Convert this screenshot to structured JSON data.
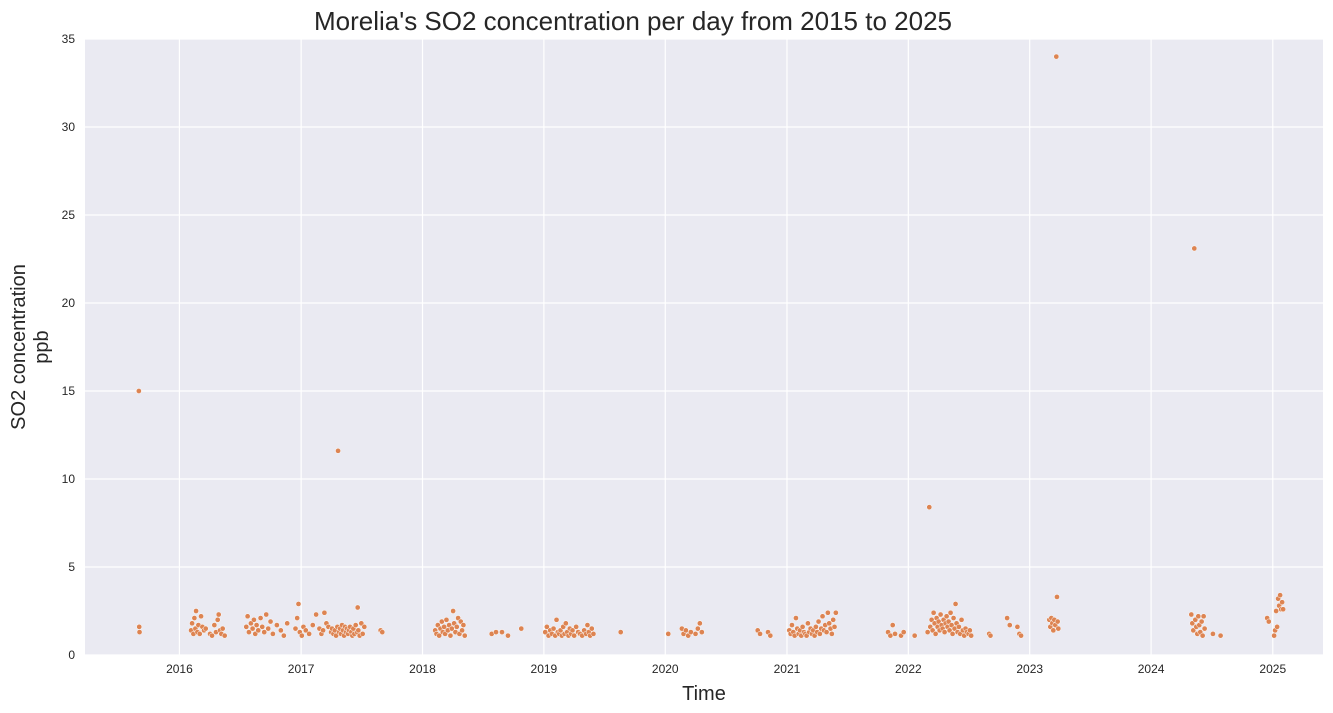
{
  "chart_data": {
    "type": "scatter",
    "title": "Morelia's SO2 concentration per day from 2015 to 2025",
    "xlabel": "Time",
    "ylabel_lines": [
      "SO2 concentration",
      "ppb"
    ],
    "xlim": [
      "2015-03-23",
      "2025-06-01"
    ],
    "ylim": [
      0,
      35
    ],
    "x_ticks": [
      "2016",
      "2017",
      "2018",
      "2019",
      "2020",
      "2021",
      "2022",
      "2023",
      "2024",
      "2025"
    ],
    "x_tick_dates": [
      "2016-01-01",
      "2017-01-01",
      "2018-01-01",
      "2019-01-01",
      "2020-01-01",
      "2021-01-01",
      "2022-01-01",
      "2023-01-01",
      "2024-01-01",
      "2025-01-01"
    ],
    "y_ticks": [
      "0",
      "5",
      "10",
      "15",
      "20",
      "25",
      "30",
      "35"
    ],
    "grid": true,
    "background_color": "#eaeaf2",
    "point_color": "#dd8452",
    "points": [
      {
        "x": "2015-09-01",
        "y": 15.0
      },
      {
        "x": "2015-09-02",
        "y": 1.6
      },
      {
        "x": "2015-09-03",
        "y": 1.3
      },
      {
        "x": "2016-02-05",
        "y": 1.4
      },
      {
        "x": "2016-02-08",
        "y": 1.8
      },
      {
        "x": "2016-02-12",
        "y": 1.2
      },
      {
        "x": "2016-02-15",
        "y": 2.1
      },
      {
        "x": "2016-02-18",
        "y": 1.5
      },
      {
        "x": "2016-02-20",
        "y": 2.5
      },
      {
        "x": "2016-02-24",
        "y": 1.3
      },
      {
        "x": "2016-02-27",
        "y": 1.7
      },
      {
        "x": "2016-03-02",
        "y": 1.2
      },
      {
        "x": "2016-03-06",
        "y": 2.2
      },
      {
        "x": "2016-03-10",
        "y": 1.6
      },
      {
        "x": "2016-03-15",
        "y": 1.4
      },
      {
        "x": "2016-03-20",
        "y": 1.5
      },
      {
        "x": "2016-04-02",
        "y": 1.2
      },
      {
        "x": "2016-04-08",
        "y": 1.1
      },
      {
        "x": "2016-04-15",
        "y": 1.7
      },
      {
        "x": "2016-04-20",
        "y": 1.3
      },
      {
        "x": "2016-04-25",
        "y": 2.0
      },
      {
        "x": "2016-04-28",
        "y": 2.3
      },
      {
        "x": "2016-05-02",
        "y": 1.4
      },
      {
        "x": "2016-05-06",
        "y": 1.2
      },
      {
        "x": "2016-05-10",
        "y": 1.5
      },
      {
        "x": "2016-05-16",
        "y": 1.1
      },
      {
        "x": "2016-07-20",
        "y": 1.6
      },
      {
        "x": "2016-07-24",
        "y": 2.2
      },
      {
        "x": "2016-07-28",
        "y": 1.3
      },
      {
        "x": "2016-08-03",
        "y": 1.8
      },
      {
        "x": "2016-08-08",
        "y": 1.5
      },
      {
        "x": "2016-08-12",
        "y": 2.0
      },
      {
        "x": "2016-08-16",
        "y": 1.2
      },
      {
        "x": "2016-08-20",
        "y": 1.7
      },
      {
        "x": "2016-08-25",
        "y": 1.4
      },
      {
        "x": "2016-09-01",
        "y": 2.1
      },
      {
        "x": "2016-09-06",
        "y": 1.6
      },
      {
        "x": "2016-09-12",
        "y": 1.3
      },
      {
        "x": "2016-09-18",
        "y": 2.3
      },
      {
        "x": "2016-09-24",
        "y": 1.5
      },
      {
        "x": "2016-10-01",
        "y": 1.9
      },
      {
        "x": "2016-10-08",
        "y": 1.2
      },
      {
        "x": "2016-10-20",
        "y": 1.7
      },
      {
        "x": "2016-11-01",
        "y": 1.4
      },
      {
        "x": "2016-11-10",
        "y": 1.1
      },
      {
        "x": "2016-11-20",
        "y": 1.8
      },
      {
        "x": "2016-12-15",
        "y": 1.5
      },
      {
        "x": "2016-12-20",
        "y": 2.1
      },
      {
        "x": "2016-12-24",
        "y": 2.9
      },
      {
        "x": "2016-12-28",
        "y": 1.3
      },
      {
        "x": "2017-01-03",
        "y": 1.1
      },
      {
        "x": "2017-01-08",
        "y": 1.6
      },
      {
        "x": "2017-01-15",
        "y": 1.4
      },
      {
        "x": "2017-01-25",
        "y": 1.2
      },
      {
        "x": "2017-02-05",
        "y": 1.7
      },
      {
        "x": "2017-02-15",
        "y": 2.3
      },
      {
        "x": "2017-02-25",
        "y": 1.5
      },
      {
        "x": "2017-03-03",
        "y": 1.2
      },
      {
        "x": "2017-03-08",
        "y": 1.4
      },
      {
        "x": "2017-03-12",
        "y": 2.4
      },
      {
        "x": "2017-03-18",
        "y": 1.8
      },
      {
        "x": "2017-03-24",
        "y": 1.6
      },
      {
        "x": "2017-04-01",
        "y": 1.3
      },
      {
        "x": "2017-04-04",
        "y": 1.5
      },
      {
        "x": "2017-04-08",
        "y": 1.2
      },
      {
        "x": "2017-04-12",
        "y": 1.4
      },
      {
        "x": "2017-04-16",
        "y": 1.1
      },
      {
        "x": "2017-04-20",
        "y": 1.6
      },
      {
        "x": "2017-04-22",
        "y": 11.6
      },
      {
        "x": "2017-04-25",
        "y": 1.3
      },
      {
        "x": "2017-04-28",
        "y": 1.5
      },
      {
        "x": "2017-05-01",
        "y": 1.2
      },
      {
        "x": "2017-05-04",
        "y": 1.7
      },
      {
        "x": "2017-05-07",
        "y": 1.4
      },
      {
        "x": "2017-05-10",
        "y": 1.1
      },
      {
        "x": "2017-05-13",
        "y": 1.6
      },
      {
        "x": "2017-05-16",
        "y": 1.3
      },
      {
        "x": "2017-05-19",
        "y": 1.5
      },
      {
        "x": "2017-05-22",
        "y": 1.2
      },
      {
        "x": "2017-05-25",
        "y": 1.4
      },
      {
        "x": "2017-05-28",
        "y": 1.6
      },
      {
        "x": "2017-06-01",
        "y": 1.3
      },
      {
        "x": "2017-06-04",
        "y": 1.1
      },
      {
        "x": "2017-06-07",
        "y": 1.5
      },
      {
        "x": "2017-06-10",
        "y": 1.2
      },
      {
        "x": "2017-06-14",
        "y": 1.7
      },
      {
        "x": "2017-06-18",
        "y": 1.3
      },
      {
        "x": "2017-06-20",
        "y": 2.7
      },
      {
        "x": "2017-06-22",
        "y": 1.4
      },
      {
        "x": "2017-06-26",
        "y": 1.1
      },
      {
        "x": "2017-07-01",
        "y": 1.8
      },
      {
        "x": "2017-07-05",
        "y": 1.2
      },
      {
        "x": "2017-07-10",
        "y": 1.6
      },
      {
        "x": "2017-08-28",
        "y": 1.4
      },
      {
        "x": "2017-09-02",
        "y": 1.3
      },
      {
        "x": "2018-02-08",
        "y": 1.4
      },
      {
        "x": "2018-02-12",
        "y": 1.2
      },
      {
        "x": "2018-02-16",
        "y": 1.7
      },
      {
        "x": "2018-02-20",
        "y": 1.1
      },
      {
        "x": "2018-02-24",
        "y": 1.5
      },
      {
        "x": "2018-02-28",
        "y": 1.9
      },
      {
        "x": "2018-03-03",
        "y": 1.3
      },
      {
        "x": "2018-03-07",
        "y": 1.6
      },
      {
        "x": "2018-03-10",
        "y": 1.2
      },
      {
        "x": "2018-03-14",
        "y": 2.0
      },
      {
        "x": "2018-03-18",
        "y": 1.4
      },
      {
        "x": "2018-03-22",
        "y": 1.7
      },
      {
        "x": "2018-03-26",
        "y": 1.1
      },
      {
        "x": "2018-03-30",
        "y": 1.5
      },
      {
        "x": "2018-04-03",
        "y": 2.5
      },
      {
        "x": "2018-04-06",
        "y": 1.8
      },
      {
        "x": "2018-04-10",
        "y": 1.3
      },
      {
        "x": "2018-04-14",
        "y": 1.6
      },
      {
        "x": "2018-04-18",
        "y": 2.1
      },
      {
        "x": "2018-04-22",
        "y": 1.2
      },
      {
        "x": "2018-04-26",
        "y": 1.9
      },
      {
        "x": "2018-04-30",
        "y": 1.4
      },
      {
        "x": "2018-05-04",
        "y": 1.7
      },
      {
        "x": "2018-05-08",
        "y": 1.1
      },
      {
        "x": "2018-07-28",
        "y": 1.2
      },
      {
        "x": "2018-08-10",
        "y": 1.3
      },
      {
        "x": "2018-08-28",
        "y": 1.3
      },
      {
        "x": "2018-09-15",
        "y": 1.1
      },
      {
        "x": "2018-10-25",
        "y": 1.5
      },
      {
        "x": "2019-01-05",
        "y": 1.3
      },
      {
        "x": "2019-01-10",
        "y": 1.6
      },
      {
        "x": "2019-01-15",
        "y": 1.1
      },
      {
        "x": "2019-01-20",
        "y": 1.4
      },
      {
        "x": "2019-01-25",
        "y": 1.2
      },
      {
        "x": "2019-01-30",
        "y": 1.5
      },
      {
        "x": "2019-02-04",
        "y": 1.1
      },
      {
        "x": "2019-02-08",
        "y": 2.0
      },
      {
        "x": "2019-02-12",
        "y": 1.3
      },
      {
        "x": "2019-02-16",
        "y": 1.2
      },
      {
        "x": "2019-02-20",
        "y": 1.4
      },
      {
        "x": "2019-02-24",
        "y": 1.1
      },
      {
        "x": "2019-02-28",
        "y": 1.6
      },
      {
        "x": "2019-03-04",
        "y": 1.2
      },
      {
        "x": "2019-03-08",
        "y": 1.8
      },
      {
        "x": "2019-03-12",
        "y": 1.3
      },
      {
        "x": "2019-03-16",
        "y": 1.1
      },
      {
        "x": "2019-03-20",
        "y": 1.5
      },
      {
        "x": "2019-03-24",
        "y": 1.2
      },
      {
        "x": "2019-03-28",
        "y": 1.4
      },
      {
        "x": "2019-04-02",
        "y": 1.1
      },
      {
        "x": "2019-04-08",
        "y": 1.6
      },
      {
        "x": "2019-04-14",
        "y": 1.3
      },
      {
        "x": "2019-04-20",
        "y": 1.2
      },
      {
        "x": "2019-04-26",
        "y": 1.1
      },
      {
        "x": "2019-05-02",
        "y": 1.4
      },
      {
        "x": "2019-05-08",
        "y": 1.2
      },
      {
        "x": "2019-05-12",
        "y": 1.7
      },
      {
        "x": "2019-05-16",
        "y": 1.3
      },
      {
        "x": "2019-05-20",
        "y": 1.1
      },
      {
        "x": "2019-05-25",
        "y": 1.5
      },
      {
        "x": "2019-05-30",
        "y": 1.2
      },
      {
        "x": "2019-08-20",
        "y": 1.3
      },
      {
        "x": "2020-01-10",
        "y": 1.2
      },
      {
        "x": "2020-02-20",
        "y": 1.5
      },
      {
        "x": "2020-02-25",
        "y": 1.2
      },
      {
        "x": "2020-03-03",
        "y": 1.4
      },
      {
        "x": "2020-03-10",
        "y": 1.1
      },
      {
        "x": "2020-03-18",
        "y": 1.3
      },
      {
        "x": "2020-04-01",
        "y": 1.2
      },
      {
        "x": "2020-04-08",
        "y": 1.5
      },
      {
        "x": "2020-04-14",
        "y": 1.8
      },
      {
        "x": "2020-04-20",
        "y": 1.3
      },
      {
        "x": "2020-10-05",
        "y": 1.4
      },
      {
        "x": "2020-10-12",
        "y": 1.2
      },
      {
        "x": "2020-11-05",
        "y": 1.3
      },
      {
        "x": "2020-11-12",
        "y": 1.1
      },
      {
        "x": "2021-01-08",
        "y": 1.4
      },
      {
        "x": "2021-01-12",
        "y": 1.2
      },
      {
        "x": "2021-01-16",
        "y": 1.7
      },
      {
        "x": "2021-01-20",
        "y": 1.3
      },
      {
        "x": "2021-01-24",
        "y": 1.1
      },
      {
        "x": "2021-01-28",
        "y": 2.1
      },
      {
        "x": "2021-02-01",
        "y": 1.5
      },
      {
        "x": "2021-02-05",
        "y": 1.2
      },
      {
        "x": "2021-02-09",
        "y": 1.4
      },
      {
        "x": "2021-02-13",
        "y": 1.1
      },
      {
        "x": "2021-02-17",
        "y": 1.6
      },
      {
        "x": "2021-02-21",
        "y": 1.3
      },
      {
        "x": "2021-02-25",
        "y": 1.2
      },
      {
        "x": "2021-03-01",
        "y": 1.1
      },
      {
        "x": "2021-03-05",
        "y": 1.8
      },
      {
        "x": "2021-03-09",
        "y": 1.3
      },
      {
        "x": "2021-03-13",
        "y": 1.5
      },
      {
        "x": "2021-03-17",
        "y": 1.2
      },
      {
        "x": "2021-03-21",
        "y": 1.4
      },
      {
        "x": "2021-03-25",
        "y": 1.1
      },
      {
        "x": "2021-03-29",
        "y": 1.6
      },
      {
        "x": "2021-04-02",
        "y": 1.3
      },
      {
        "x": "2021-04-06",
        "y": 1.9
      },
      {
        "x": "2021-04-10",
        "y": 1.2
      },
      {
        "x": "2021-04-14",
        "y": 1.5
      },
      {
        "x": "2021-04-18",
        "y": 2.2
      },
      {
        "x": "2021-04-22",
        "y": 1.4
      },
      {
        "x": "2021-04-26",
        "y": 1.7
      },
      {
        "x": "2021-04-30",
        "y": 1.3
      },
      {
        "x": "2021-05-04",
        "y": 2.4
      },
      {
        "x": "2021-05-08",
        "y": 1.8
      },
      {
        "x": "2021-05-12",
        "y": 1.5
      },
      {
        "x": "2021-05-16",
        "y": 1.2
      },
      {
        "x": "2021-05-20",
        "y": 2.0
      },
      {
        "x": "2021-05-24",
        "y": 1.6
      },
      {
        "x": "2021-05-28",
        "y": 2.4
      },
      {
        "x": "2021-11-01",
        "y": 1.3
      },
      {
        "x": "2021-11-08",
        "y": 1.1
      },
      {
        "x": "2021-11-15",
        "y": 1.7
      },
      {
        "x": "2021-11-22",
        "y": 1.2
      },
      {
        "x": "2021-12-10",
        "y": 1.1
      },
      {
        "x": "2021-12-18",
        "y": 1.3
      },
      {
        "x": "2022-01-20",
        "y": 1.1
      },
      {
        "x": "2022-02-28",
        "y": 1.3
      },
      {
        "x": "2022-03-05",
        "y": 8.4
      },
      {
        "x": "2022-03-08",
        "y": 1.6
      },
      {
        "x": "2022-03-12",
        "y": 2.0
      },
      {
        "x": "2022-03-15",
        "y": 1.4
      },
      {
        "x": "2022-03-18",
        "y": 2.4
      },
      {
        "x": "2022-03-21",
        "y": 1.8
      },
      {
        "x": "2022-03-24",
        "y": 1.2
      },
      {
        "x": "2022-03-27",
        "y": 2.1
      },
      {
        "x": "2022-03-30",
        "y": 1.6
      },
      {
        "x": "2022-04-02",
        "y": 1.9
      },
      {
        "x": "2022-04-05",
        "y": 1.4
      },
      {
        "x": "2022-04-08",
        "y": 2.3
      },
      {
        "x": "2022-04-11",
        "y": 1.7
      },
      {
        "x": "2022-04-14",
        "y": 1.5
      },
      {
        "x": "2022-04-17",
        "y": 2.0
      },
      {
        "x": "2022-04-20",
        "y": 1.3
      },
      {
        "x": "2022-04-23",
        "y": 1.8
      },
      {
        "x": "2022-04-26",
        "y": 2.2
      },
      {
        "x": "2022-04-29",
        "y": 1.6
      },
      {
        "x": "2022-05-02",
        "y": 1.9
      },
      {
        "x": "2022-05-05",
        "y": 1.4
      },
      {
        "x": "2022-05-08",
        "y": 2.4
      },
      {
        "x": "2022-05-11",
        "y": 1.7
      },
      {
        "x": "2022-05-14",
        "y": 1.2
      },
      {
        "x": "2022-05-17",
        "y": 2.1
      },
      {
        "x": "2022-05-20",
        "y": 1.5
      },
      {
        "x": "2022-05-23",
        "y": 2.9
      },
      {
        "x": "2022-05-26",
        "y": 1.8
      },
      {
        "x": "2022-05-29",
        "y": 1.3
      },
      {
        "x": "2022-06-02",
        "y": 1.6
      },
      {
        "x": "2022-06-06",
        "y": 1.2
      },
      {
        "x": "2022-06-10",
        "y": 2.0
      },
      {
        "x": "2022-06-14",
        "y": 1.4
      },
      {
        "x": "2022-06-18",
        "y": 1.1
      },
      {
        "x": "2022-06-22",
        "y": 1.5
      },
      {
        "x": "2022-06-26",
        "y": 1.3
      },
      {
        "x": "2022-07-01",
        "y": 1.2
      },
      {
        "x": "2022-07-05",
        "y": 1.4
      },
      {
        "x": "2022-07-09",
        "y": 1.1
      },
      {
        "x": "2022-09-01",
        "y": 1.2
      },
      {
        "x": "2022-09-05",
        "y": 1.1
      },
      {
        "x": "2022-10-25",
        "y": 2.1
      },
      {
        "x": "2022-11-02",
        "y": 1.7
      },
      {
        "x": "2022-11-25",
        "y": 1.6
      },
      {
        "x": "2022-12-01",
        "y": 1.2
      },
      {
        "x": "2022-12-06",
        "y": 1.1
      },
      {
        "x": "2023-03-01",
        "y": 2.0
      },
      {
        "x": "2023-03-04",
        "y": 1.6
      },
      {
        "x": "2023-03-07",
        "y": 2.1
      },
      {
        "x": "2023-03-10",
        "y": 1.8
      },
      {
        "x": "2023-03-13",
        "y": 1.4
      },
      {
        "x": "2023-03-16",
        "y": 2.0
      },
      {
        "x": "2023-03-19",
        "y": 1.7
      },
      {
        "x": "2023-03-22",
        "y": 34.0
      },
      {
        "x": "2023-03-24",
        "y": 3.3
      },
      {
        "x": "2023-03-26",
        "y": 1.9
      },
      {
        "x": "2023-03-28",
        "y": 1.5
      },
      {
        "x": "2024-05-01",
        "y": 2.3
      },
      {
        "x": "2024-05-04",
        "y": 1.8
      },
      {
        "x": "2024-05-07",
        "y": 1.4
      },
      {
        "x": "2024-05-10",
        "y": 23.1
      },
      {
        "x": "2024-05-13",
        "y": 2.0
      },
      {
        "x": "2024-05-16",
        "y": 1.6
      },
      {
        "x": "2024-05-19",
        "y": 1.2
      },
      {
        "x": "2024-05-22",
        "y": 2.2
      },
      {
        "x": "2024-05-25",
        "y": 1.7
      },
      {
        "x": "2024-05-28",
        "y": 1.3
      },
      {
        "x": "2024-06-01",
        "y": 1.9
      },
      {
        "x": "2024-06-04",
        "y": 1.1
      },
      {
        "x": "2024-06-07",
        "y": 2.2
      },
      {
        "x": "2024-06-10",
        "y": 1.5
      },
      {
        "x": "2024-07-05",
        "y": 1.2
      },
      {
        "x": "2024-07-28",
        "y": 1.1
      },
      {
        "x": "2024-12-15",
        "y": 2.1
      },
      {
        "x": "2024-12-20",
        "y": 1.9
      },
      {
        "x": "2025-01-05",
        "y": 1.1
      },
      {
        "x": "2025-01-08",
        "y": 1.4
      },
      {
        "x": "2025-01-11",
        "y": 2.5
      },
      {
        "x": "2025-01-14",
        "y": 1.6
      },
      {
        "x": "2025-01-17",
        "y": 3.2
      },
      {
        "x": "2025-01-20",
        "y": 2.8
      },
      {
        "x": "2025-01-23",
        "y": 3.4
      },
      {
        "x": "2025-01-26",
        "y": 2.6
      },
      {
        "x": "2025-01-29",
        "y": 3.0
      },
      {
        "x": "2025-02-01",
        "y": 2.6
      }
    ]
  }
}
